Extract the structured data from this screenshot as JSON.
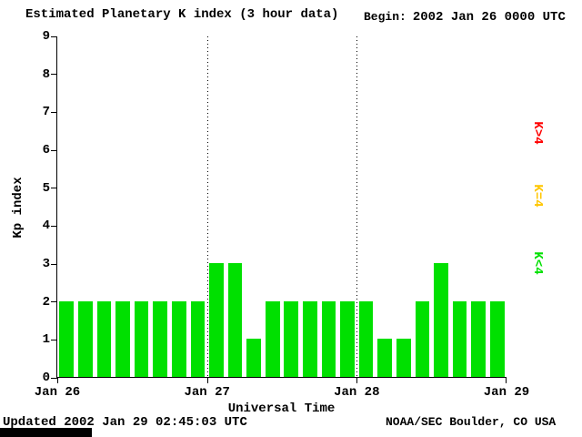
{
  "title": "Estimated Planetary K index (3 hour data)",
  "begin": {
    "label": "Begin:",
    "value": "2002 Jan 26 0000 UTC"
  },
  "footer": {
    "updated": "Updated 2002 Jan 29 02:45:03 UTC",
    "credit": "NOAA/SEC Boulder, CO USA"
  },
  "legend": {
    "items": [
      {
        "label": "K>4",
        "color": "#ff0000"
      },
      {
        "label": "K=4",
        "color": "#ffc600"
      },
      {
        "label": "K<4",
        "color": "#00e000"
      }
    ]
  },
  "chart_data": {
    "type": "bar",
    "title": "Estimated Planetary K index (3 hour data)",
    "xlabel": "Universal Time",
    "ylabel": "Kp index",
    "ylim": [
      0,
      9
    ],
    "y_ticks": [
      0,
      1,
      2,
      3,
      4,
      5,
      6,
      7,
      8,
      9
    ],
    "x_ticks": [
      "Jan 26",
      "Jan 27",
      "Jan 28",
      "Jan 29"
    ],
    "interval_hours": 3,
    "bar_color": "#00e000",
    "grid": "vertical-dotted-day-separators",
    "legend_position": "right-rotated",
    "values": [
      2,
      2,
      2,
      2,
      2,
      2,
      2,
      2,
      3,
      3,
      1,
      2,
      2,
      2,
      2,
      2,
      2,
      1,
      1,
      2,
      3,
      2,
      2,
      2
    ]
  }
}
